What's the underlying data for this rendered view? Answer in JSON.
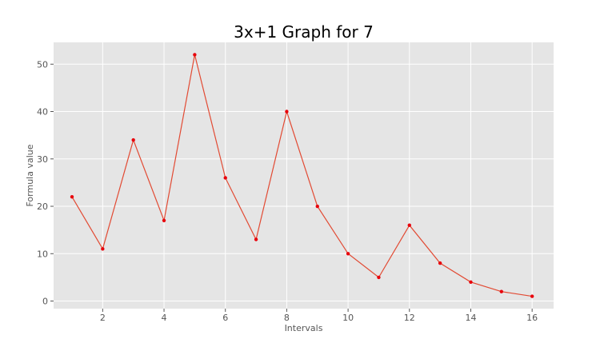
{
  "chart_data": {
    "type": "line",
    "title": "3x+1 Graph for 7",
    "xlabel": "Intervals",
    "ylabel": "Formula value",
    "x": [
      1,
      2,
      3,
      4,
      5,
      6,
      7,
      8,
      9,
      10,
      11,
      12,
      13,
      14,
      15,
      16
    ],
    "series": [
      {
        "values": [
          22,
          11,
          34,
          17,
          52,
          26,
          13,
          40,
          20,
          10,
          5,
          16,
          8,
          4,
          2,
          1
        ]
      }
    ],
    "xlim": [
      0.4,
      16.7
    ],
    "ylim": [
      -1.6,
      54.6
    ],
    "xticks": [
      2,
      4,
      6,
      8,
      10,
      12,
      14,
      16
    ],
    "yticks": [
      0,
      10,
      20,
      30,
      40,
      50
    ],
    "grid": true,
    "colors": {
      "line": "#e24a33",
      "marker": "#e8000b",
      "plot_background": "#e5e5e5",
      "grid": "#ffffff"
    }
  }
}
